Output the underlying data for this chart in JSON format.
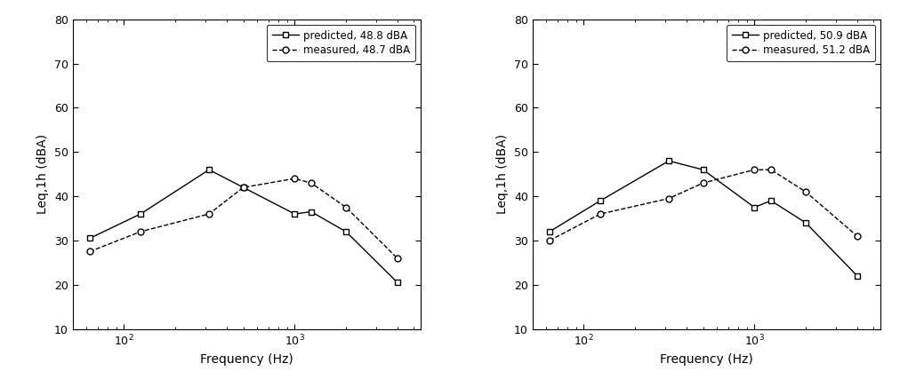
{
  "freqs": [
    63,
    125,
    315,
    500,
    1000,
    1250,
    2000,
    4000
  ],
  "left": {
    "predicted": [
      30.5,
      36.0,
      46.0,
      42.0,
      36.0,
      36.5,
      32.0,
      20.5
    ],
    "measured": [
      27.5,
      32.0,
      36.0,
      42.0,
      44.0,
      43.0,
      37.5,
      26.0
    ],
    "legend_predicted": "predicted, 48.8 dBA",
    "legend_measured": "measured, 48.7 dBA"
  },
  "right": {
    "predicted": [
      32.0,
      39.0,
      48.0,
      46.0,
      37.5,
      39.0,
      34.0,
      22.0
    ],
    "measured": [
      30.0,
      36.0,
      39.5,
      43.0,
      46.0,
      46.0,
      41.0,
      31.0
    ],
    "legend_predicted": "predicted, 50.9 dBA",
    "legend_measured": "measured, 51.2 dBA"
  },
  "ylabel": "Leq,1h (dBA)",
  "xlabel": "Frequency (Hz)",
  "ylim": [
    10,
    80
  ],
  "yticks": [
    10,
    20,
    30,
    40,
    50,
    60,
    70,
    80
  ],
  "xlim": [
    50,
    5500
  ],
  "line_color": "#000000",
  "background_color": "#ffffff",
  "figsize": [
    10.21,
    4.36
  ],
  "dpi": 100
}
